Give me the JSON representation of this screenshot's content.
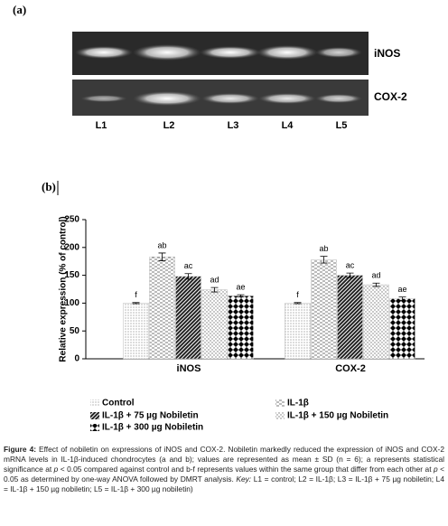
{
  "panel_a": {
    "label": "(a)",
    "gels": [
      "iNOS",
      "COX-2"
    ],
    "lanes": [
      "L1",
      "L2",
      "L3",
      "L4",
      "L5"
    ]
  },
  "chart_data": {
    "type": "bar",
    "panel_label": "(b)",
    "y_label": "Relative expression (% of control)",
    "categories": [
      "iNOS",
      "COX-2"
    ],
    "series": [
      {
        "name": "Control",
        "pattern": "p-control",
        "values": [
          100,
          100
        ],
        "errors": [
          1,
          1
        ],
        "letters": [
          "f",
          "f"
        ]
      },
      {
        "name": "IL-1β",
        "pattern": "p-il",
        "values": [
          183,
          178
        ],
        "errors": [
          7,
          6
        ],
        "letters": [
          "ab",
          "ab"
        ]
      },
      {
        "name": "IL-1β + 75 µg Nobiletin",
        "pattern": "p-75",
        "values": [
          148,
          150
        ],
        "errors": [
          5,
          4
        ],
        "letters": [
          "ac",
          "ac"
        ]
      },
      {
        "name": "IL-1β + 150 µg Nobiletin",
        "pattern": "p-150",
        "values": [
          124,
          133
        ],
        "errors": [
          4,
          3
        ],
        "letters": [
          "ad",
          "ad"
        ]
      },
      {
        "name": "IL-1β + 300 µg Nobiletin",
        "pattern": "p-300",
        "values": [
          113,
          108
        ],
        "errors": [
          2,
          3
        ],
        "letters": [
          "ae",
          "ae"
        ]
      }
    ],
    "ylim": [
      0,
      250
    ],
    "yticks": [
      0,
      50,
      100,
      150,
      200,
      250
    ]
  },
  "caption": {
    "label": "Figure 4:",
    "segments": [
      {
        "text": " Effect of nobiletin on expressions of iNOS and COX-2. Nobiletin markedly reduced the expression of iNOS and COX-2 mRNA levels in IL-1β-induced chondrocytes (a and b); values are represented as mean ± SD (n = 6); a represents statistical significance at ",
        "italic": false
      },
      {
        "text": "p",
        "italic": true
      },
      {
        "text": " < 0.05 compared against control and b-f represents values within the same group that differ from each other at ",
        "italic": false
      },
      {
        "text": "p",
        "italic": true
      },
      {
        "text": " < 0.05 as determined by one-way ANOVA followed by DMRT analysis. ",
        "italic": false
      },
      {
        "text": "Key:",
        "italic": true
      },
      {
        "text": " L1 = control; L2 = IL-1β; L3 = IL-1β + 75 µg nobiletin; L4 = IL-1β + 150 µg nobiletin; L5 = IL-1β + 300 µg nobiletin)",
        "italic": false
      }
    ]
  }
}
